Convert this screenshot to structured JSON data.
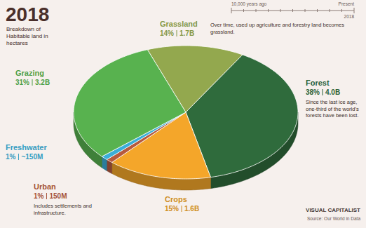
{
  "chart_data": {
    "type": "pie",
    "title": "2018",
    "subtitle": "Breakdown of Habitable land in hectares",
    "categories": [
      "Grassland",
      "Forest",
      "Crops",
      "Urban",
      "Freshwater",
      "Grazing"
    ],
    "values": [
      14,
      38,
      15,
      1,
      1,
      31
    ],
    "value_labels": [
      "14%",
      "38%",
      "15%",
      "1%",
      "1%",
      "31%"
    ],
    "hectares": [
      1700000000,
      4000000000,
      1600000000,
      150000000,
      150000000,
      3200000000
    ],
    "hectares_labels": [
      "1.7B",
      "4.0B",
      "1.6B",
      "150M",
      "~150M",
      "3.2B"
    ],
    "colors": [
      "#93a84e",
      "#2f6b3c",
      "#f4a62a",
      "#b65a3e",
      "#3aaed8",
      "#58b24f"
    ],
    "annotations": [
      {
        "category": "Grassland",
        "text": "Over time, used up agriculture and forestry land becomes grassland."
      },
      {
        "category": "Forest",
        "text": "Since the last ice age, one-third of the world's forests have been lost."
      },
      {
        "category": "Urban",
        "text": "Includes settlements and infrastructure."
      }
    ],
    "timeline": {
      "start_label": "10,000 years ago",
      "end_label": "Present",
      "end_year": "2018"
    },
    "brand": "VISUAL CAPITALIST",
    "source": "Source: Our World in Data"
  }
}
